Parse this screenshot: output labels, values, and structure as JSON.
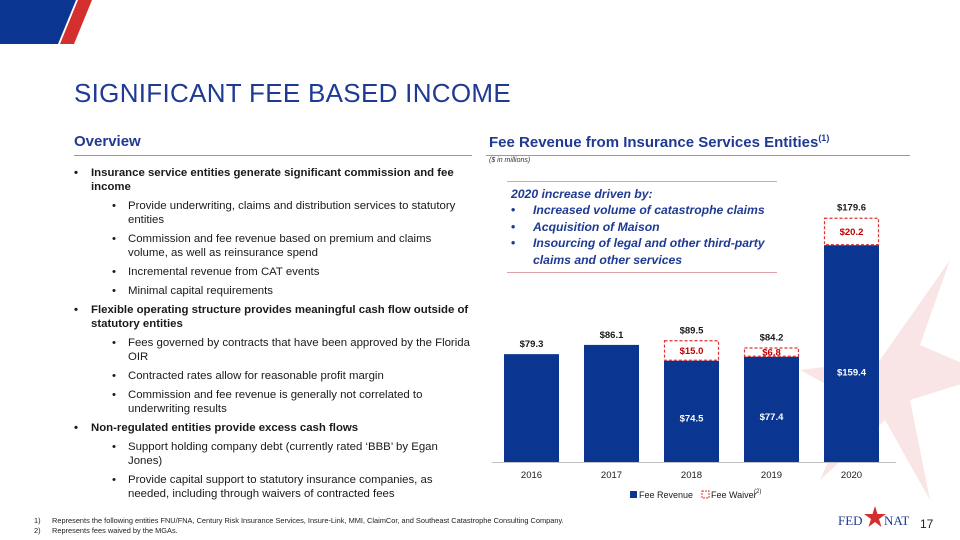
{
  "title": "SIGNIFICANT FEE BASED INCOME",
  "overview": {
    "heading": "Overview",
    "bullets": [
      {
        "level": 1,
        "text": "Insurance service entities generate significant commission and fee income"
      },
      {
        "level": 2,
        "text": "Provide underwriting, claims and distribution services to statutory entities"
      },
      {
        "level": 2,
        "text": "Commission and fee revenue based on premium and claims volume, as well as reinsurance spend"
      },
      {
        "level": 2,
        "text": "Incremental revenue from CAT events"
      },
      {
        "level": 2,
        "text": "Minimal capital requirements"
      },
      {
        "level": 1,
        "text": "Flexible operating structure provides meaningful cash flow outside of statutory entities"
      },
      {
        "level": 2,
        "text": "Fees governed by contracts that have been approved by the Florida OIR"
      },
      {
        "level": 2,
        "text": "Contracted rates allow for reasonable profit margin"
      },
      {
        "level": 2,
        "text": "Commission and fee revenue is generally not correlated to underwriting results"
      },
      {
        "level": 1,
        "text": "Non-regulated entities provide excess cash flows"
      },
      {
        "level": 2,
        "text": "Support holding company debt (currently rated ‘BBB’ by Egan Jones)"
      },
      {
        "level": 2,
        "text": "Provide capital support to statutory insurance companies, as needed, including through waivers of contracted fees"
      }
    ]
  },
  "fee_section": {
    "heading": "Fee Revenue from Insurance Services Entities",
    "heading_sup": "(1)",
    "units_note": "($ in millions)"
  },
  "callout": {
    "heading": "2020 increase driven by:",
    "items": [
      "Increased volume of catastrophe claims",
      "Acquisition of Maison",
      "Insourcing of legal and other third-party claims and other services"
    ]
  },
  "chart_data": {
    "type": "bar",
    "stacked": true,
    "categories": [
      "2016",
      "2017",
      "2018",
      "2019",
      "2020"
    ],
    "series": [
      {
        "name": "Fee Revenue",
        "values": [
          79.3,
          86.1,
          74.5,
          77.4,
          159.4
        ],
        "labels": [
          "",
          "",
          "$74.5",
          "$77.4",
          "$159.4"
        ]
      },
      {
        "name": "Fee Waiver",
        "values": [
          0,
          0,
          15.0,
          6.8,
          20.2
        ],
        "labels": [
          "",
          "",
          "$15.0",
          "$6.8",
          "$20.2"
        ]
      }
    ],
    "totals": [
      79.3,
      86.1,
      89.5,
      84.2,
      179.6
    ],
    "total_labels": [
      "$79.3",
      "$86.1",
      "$89.5",
      "$84.2",
      "$179.6"
    ],
    "legend": [
      "Fee Revenue",
      "Fee Waiver"
    ],
    "legend_sup": "(2)",
    "legend_position": "bottom",
    "colors": {
      "fee_revenue": "#0a3590",
      "fee_waiver_border": "#e03030",
      "fee_waiver_text": "#c00000"
    }
  },
  "footnotes": [
    {
      "num": "1)",
      "text": "Represents the following entities FNU/FNA, Century Risk Insurance Services, Insure-Link, MMI, ClaimCor, and Southeast Catastrophe Consulting Company."
    },
    {
      "num": "2)",
      "text": "Represents fees waived by the MGAs."
    }
  ],
  "logo": {
    "left": "FED",
    "right": "NAT"
  },
  "page_number": "17",
  "colors": {
    "primary": "#1f3a93",
    "accent_red": "#d32f2f"
  }
}
